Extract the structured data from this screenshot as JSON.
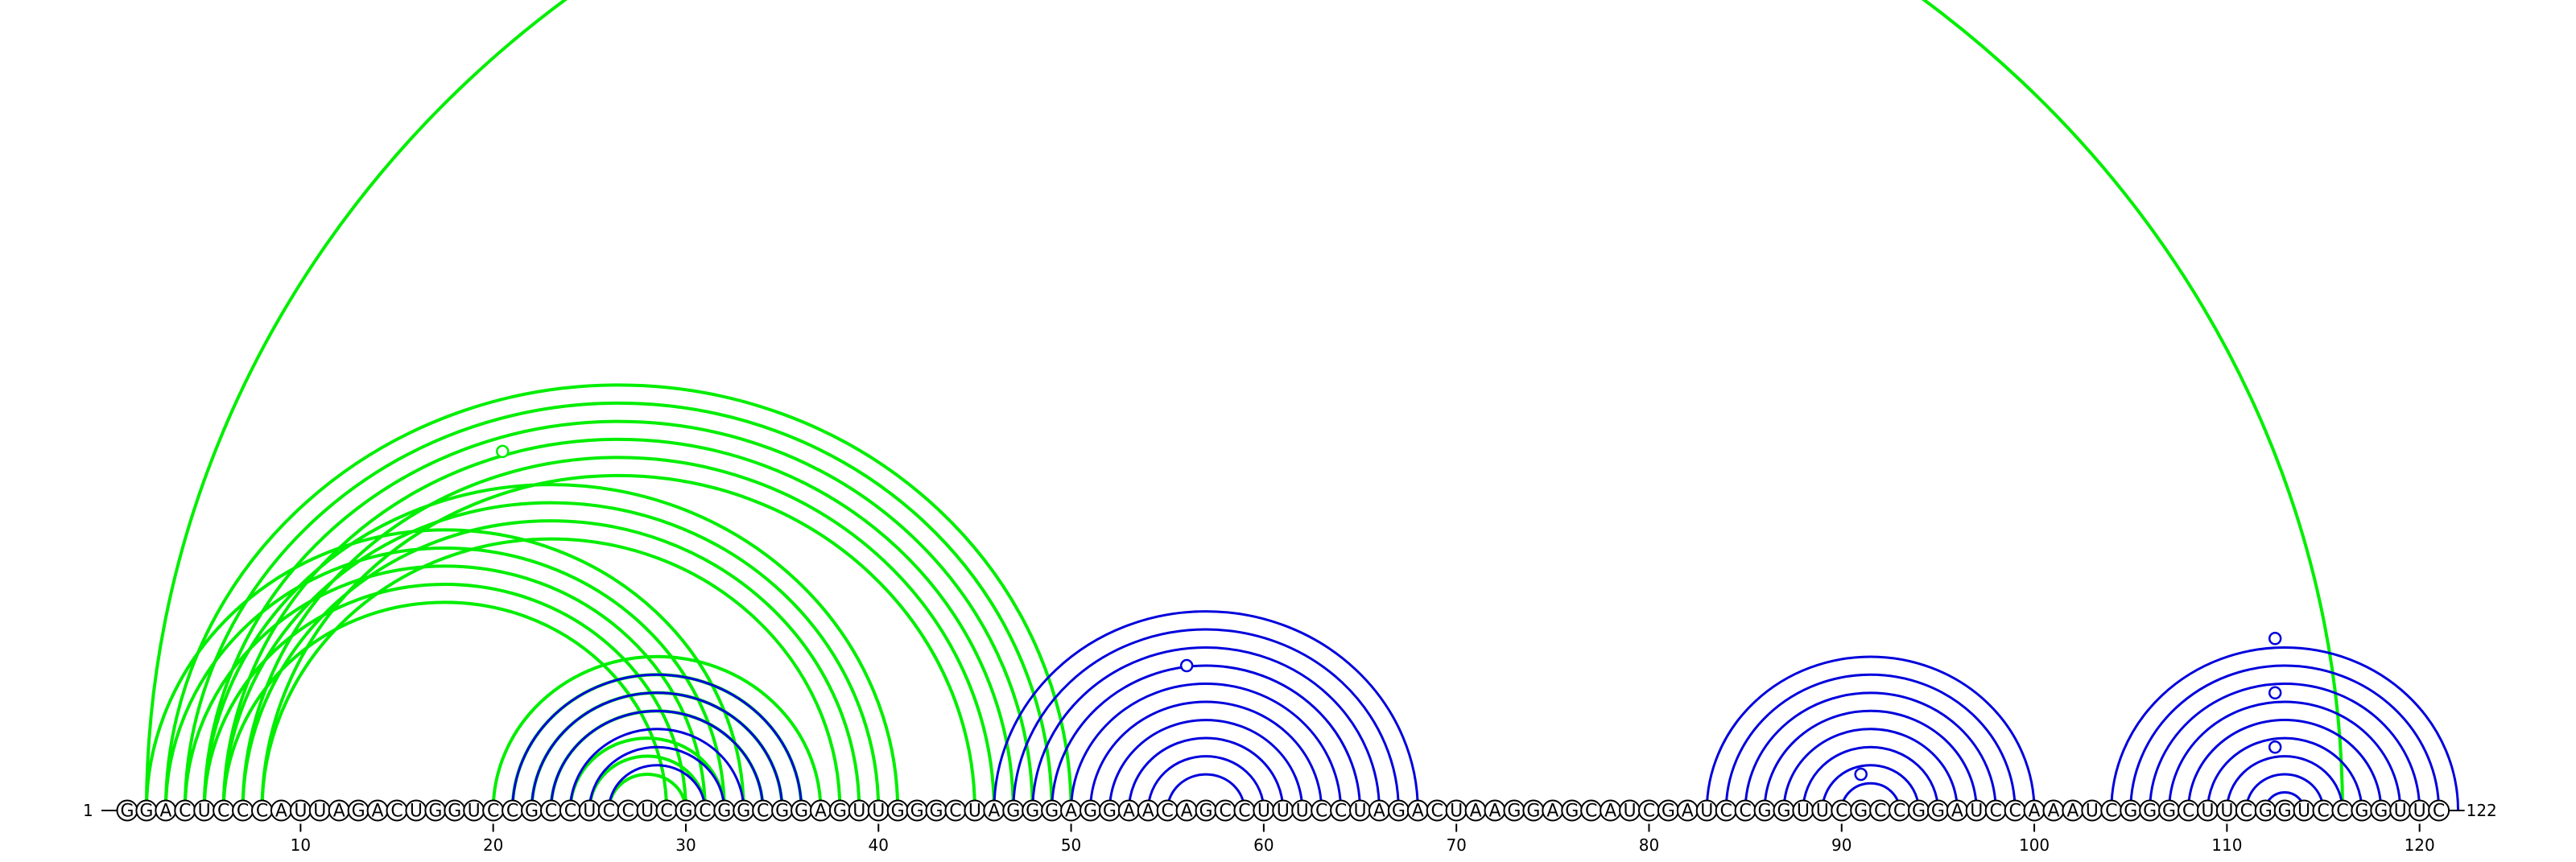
{
  "chart_data": {
    "type": "arc-diagram",
    "sequence": "GGACUCCCAUUAGACUGGUCCGCCUCCUCGCGGCGGAGUUGGGCUAGGGAGGAACAGCCUUUCCUAGACUAAGGAGCAUCGAUCCGGUUCGCCGGAUCCAAAUCGGGCUUCGGUCCGGUUC",
    "start_label": "1",
    "end_label": "122",
    "ticks": [
      10,
      20,
      30,
      40,
      50,
      60,
      70,
      80,
      90,
      100,
      110,
      120
    ],
    "colors": {
      "structure_a": "#00ee00",
      "structure_b": "#0000dd",
      "circle_stroke": "#000000"
    },
    "arcs_green": [
      [
        2,
        116
      ],
      [
        2,
        33
      ],
      [
        3,
        32
      ],
      [
        4,
        31
      ],
      [
        5,
        30
      ],
      [
        6,
        29
      ],
      [
        3,
        50
      ],
      [
        4,
        49
      ],
      [
        5,
        48
      ],
      [
        6,
        47
      ],
      [
        7,
        46
      ],
      [
        8,
        45
      ],
      [
        5,
        41
      ],
      [
        6,
        40
      ],
      [
        7,
        39
      ],
      [
        8,
        38
      ],
      [
        20,
        37
      ],
      [
        21,
        36
      ],
      [
        22,
        35
      ],
      [
        23,
        34
      ],
      [
        24,
        32
      ],
      [
        25,
        31
      ],
      [
        26,
        30
      ]
    ],
    "arcs_blue": [
      [
        21,
        36
      ],
      [
        22,
        35
      ],
      [
        23,
        34
      ],
      [
        24,
        33
      ],
      [
        25,
        32
      ],
      [
        26,
        31
      ],
      [
        46,
        68
      ],
      [
        47,
        67
      ],
      [
        48,
        66
      ],
      [
        49,
        65
      ],
      [
        50,
        64
      ],
      [
        51,
        63
      ],
      [
        52,
        62
      ],
      [
        53,
        61
      ],
      [
        54,
        60
      ],
      [
        55,
        59
      ],
      [
        83,
        100
      ],
      [
        84,
        99
      ],
      [
        85,
        98
      ],
      [
        86,
        97
      ],
      [
        87,
        96
      ],
      [
        88,
        95
      ],
      [
        89,
        94
      ],
      [
        90,
        93
      ],
      [
        104,
        122
      ],
      [
        105,
        121
      ],
      [
        106,
        120
      ],
      [
        107,
        119
      ],
      [
        108,
        118
      ],
      [
        109,
        117
      ],
      [
        110,
        116
      ],
      [
        111,
        115
      ],
      [
        112,
        114
      ]
    ],
    "markers_green": [
      [
        3,
        48
      ]
    ],
    "markers_blue": [
      [
        48,
        64
      ],
      [
        89,
        93
      ],
      [
        103,
        122
      ],
      [
        106,
        119
      ],
      [
        109,
        116
      ]
    ]
  }
}
